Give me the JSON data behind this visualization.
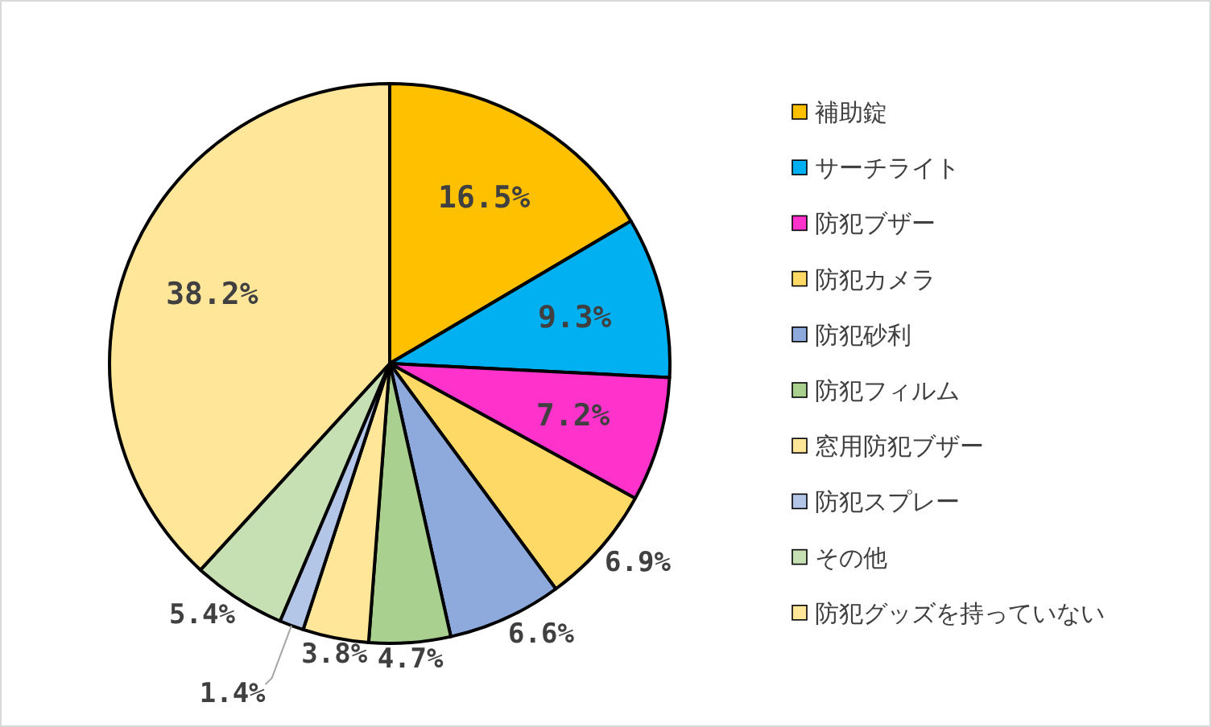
{
  "chart_data": {
    "type": "pie",
    "categories": [
      "補助錠",
      "サーチライト",
      "防犯ブザー",
      "防犯カメラ",
      "防犯砂利",
      "防犯フィルム",
      "窓用防犯ブザー",
      "防犯スプレー",
      "その他",
      "防犯グッズを持っていない"
    ],
    "values": [
      16.5,
      9.3,
      7.2,
      6.9,
      6.6,
      4.7,
      3.8,
      1.4,
      5.4,
      38.2
    ],
    "value_labels": [
      "16.5%",
      "9.3%",
      "7.2%",
      "6.9%",
      "6.6%",
      "4.7%",
      "3.8%",
      "1.4%",
      "5.4%",
      "38.2%"
    ],
    "colors": [
      "#ffc000",
      "#00b0f0",
      "#ff33cc",
      "#ffd966",
      "#8ea9db",
      "#a9d08e",
      "#ffe699",
      "#b4c6e7",
      "#c6e0b4",
      "#ffe699"
    ],
    "legend": "right"
  }
}
